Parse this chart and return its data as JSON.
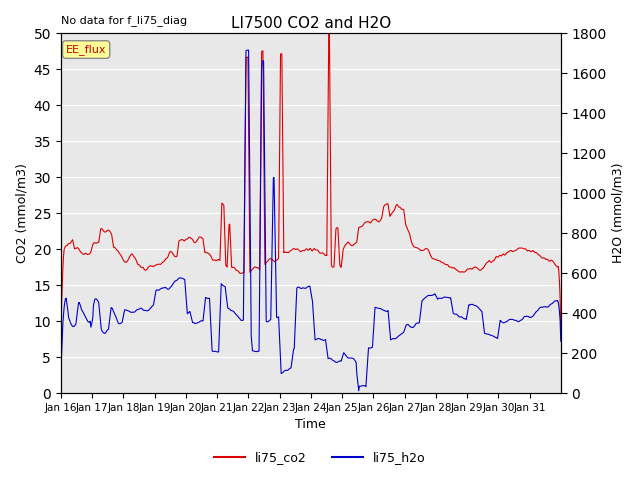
{
  "title": "LI7500 CO2 and H2O",
  "subtitle": "No data for f_li75_diag",
  "xlabel": "Time",
  "ylabel_left": "CO2 (mmol/m3)",
  "ylabel_right": "H2O (mmol/m3)",
  "ylim_left": [
    0,
    50
  ],
  "ylim_right": [
    0,
    1800
  ],
  "yticks_left": [
    0,
    5,
    10,
    15,
    20,
    25,
    30,
    35,
    40,
    45,
    50
  ],
  "yticks_right": [
    0,
    200,
    400,
    600,
    800,
    1000,
    1200,
    1400,
    1600,
    1800
  ],
  "xticklabels": [
    "Jan 16",
    "Jan 17",
    "Jan 18",
    "Jan 19",
    "Jan 20",
    "Jan 21",
    "Jan 22",
    "Jan 23",
    "Jan 24",
    "Jan 25",
    "Jan 26",
    "Jan 27",
    "Jan 28",
    "Jan 29",
    "Jan 30",
    "Jan 31"
  ],
  "legend_label_co2": "li75_co2",
  "legend_label_h2o": "li75_h2o",
  "color_co2": "#dd0000",
  "color_h2o": "#0000cc",
  "annotation_text": "EE_flux",
  "background_color": "#e8e8e8",
  "grid_color": "#ffffff",
  "fig_bg": "#ffffff",
  "seed": 12345
}
